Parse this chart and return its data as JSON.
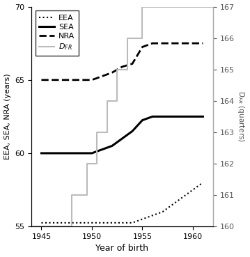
{
  "title": "",
  "xlabel": "Year of birth",
  "ylabel_left": "EEA, SEA, NRA (years)",
  "ylabel_right": "D$_{FR}$ (quarters)",
  "ylim_left": [
    55,
    70
  ],
  "ylim_right": [
    160,
    167
  ],
  "yticks_left": [
    55,
    60,
    65,
    70
  ],
  "yticks_right": [
    160,
    161,
    162,
    163,
    164,
    165,
    166,
    167
  ],
  "xlim": [
    1944.0,
    1962.0
  ],
  "xticks": [
    1945,
    1950,
    1955,
    1960
  ],
  "EEA": {
    "x": [
      1945,
      1946,
      1947,
      1948,
      1949,
      1950,
      1951,
      1952,
      1953,
      1954,
      1955,
      1956,
      1957,
      1958,
      1959,
      1960,
      1961
    ],
    "y": [
      55.25,
      55.25,
      55.25,
      55.25,
      55.25,
      55.25,
      55.25,
      55.25,
      55.25,
      55.25,
      55.5,
      55.75,
      56.0,
      56.5,
      57.0,
      57.5,
      58.0
    ],
    "color": "#000000",
    "linestyle": "dotted",
    "linewidth": 1.5
  },
  "SEA": {
    "x": [
      1945,
      1946,
      1947,
      1948,
      1949,
      1950,
      1951,
      1952,
      1953,
      1954,
      1955,
      1956,
      1957,
      1958,
      1959,
      1960,
      1961
    ],
    "y": [
      60.0,
      60.0,
      60.0,
      60.0,
      60.0,
      60.0,
      60.25,
      60.5,
      61.0,
      61.5,
      62.25,
      62.5,
      62.5,
      62.5,
      62.5,
      62.5,
      62.5
    ],
    "color": "#000000",
    "linestyle": "solid",
    "linewidth": 2.2
  },
  "NRA": {
    "x": [
      1945,
      1946,
      1947,
      1948,
      1949,
      1950,
      1951,
      1952,
      1953,
      1954,
      1955,
      1956,
      1957,
      1958,
      1959,
      1960,
      1961
    ],
    "y": [
      65.0,
      65.0,
      65.0,
      65.0,
      65.0,
      65.0,
      65.25,
      65.5,
      65.9,
      66.1,
      67.25,
      67.5,
      67.5,
      67.5,
      67.5,
      67.5,
      67.5
    ],
    "color": "#000000",
    "linestyle": "dashed",
    "linewidth": 2.0
  },
  "DFR": {
    "x": [
      1944.0,
      1948.0,
      1948.0,
      1949.5,
      1949.5,
      1950.5,
      1950.5,
      1951.5,
      1951.5,
      1952.5,
      1952.5,
      1953.5,
      1953.5,
      1955.0,
      1955.0,
      1956.0,
      1956.0,
      1962.0
    ],
    "y": [
      160,
      160,
      161,
      161,
      162,
      162,
      163,
      163,
      164,
      164,
      165,
      165,
      166,
      166,
      167,
      167,
      167,
      167
    ],
    "color": "#bbbbbb",
    "linestyle": "solid",
    "linewidth": 1.5
  },
  "background_color": "#ffffff"
}
